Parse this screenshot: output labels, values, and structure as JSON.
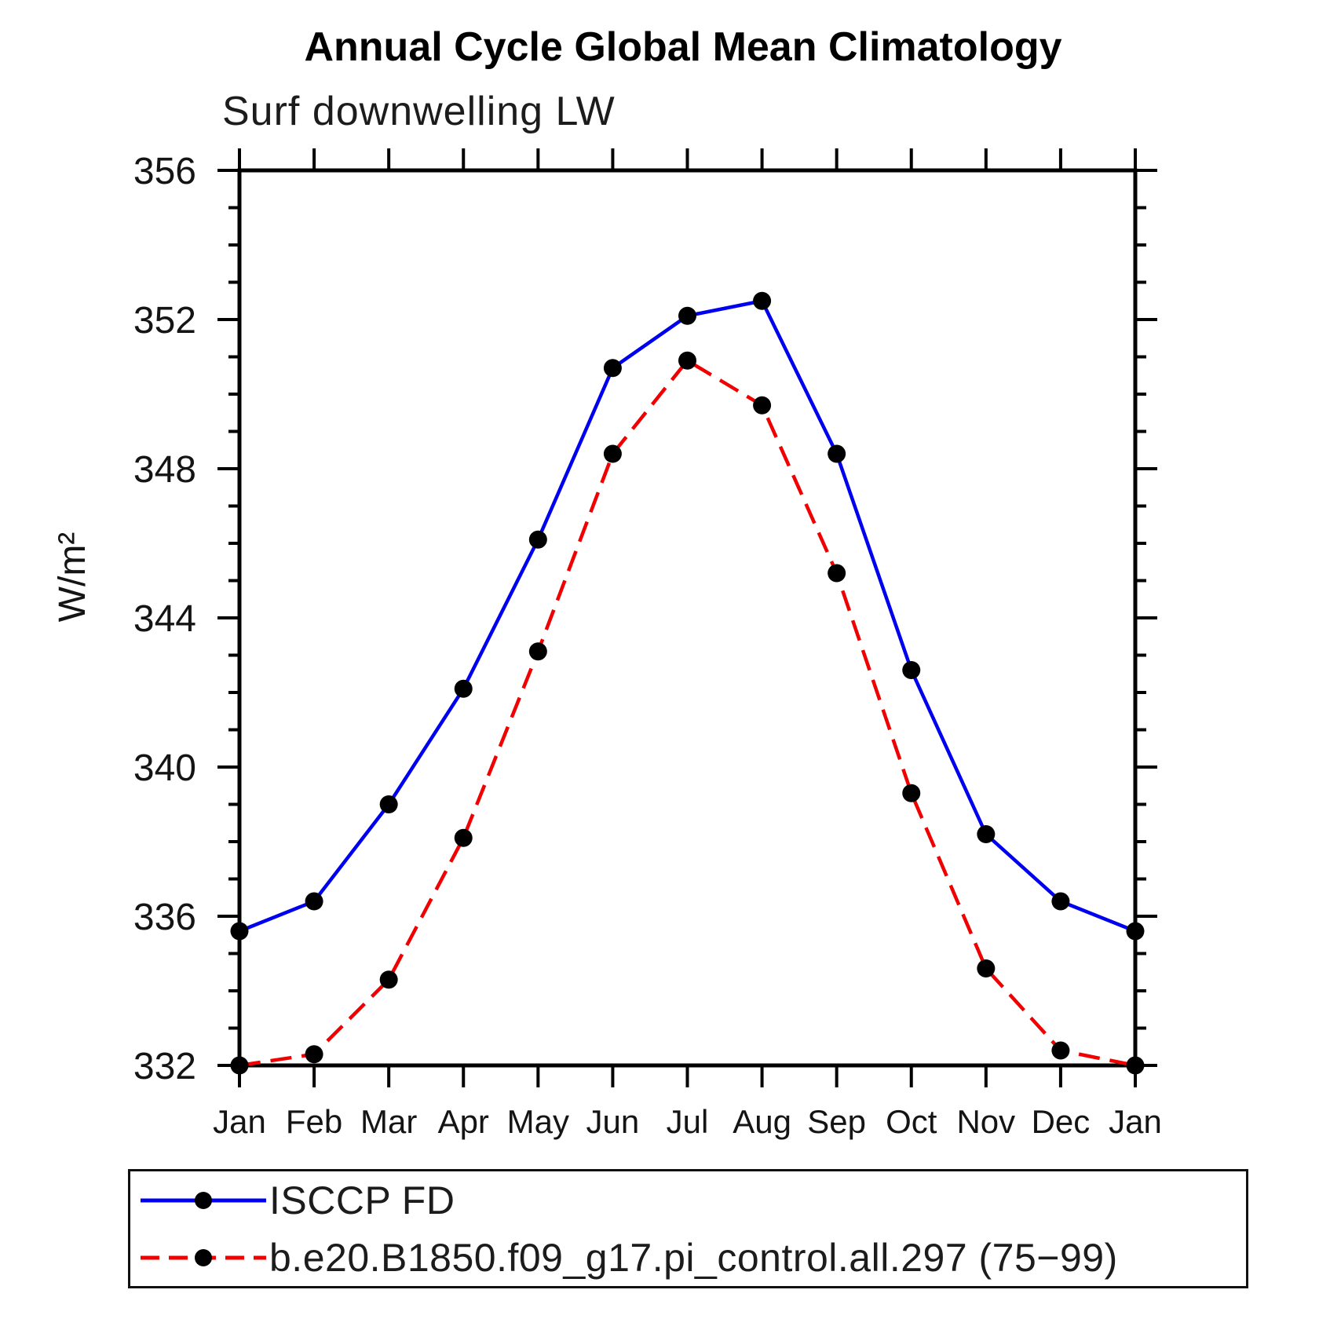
{
  "title": "Annual Cycle Global Mean Climatology",
  "subtitle": "Surf downwelling LW",
  "chart_data": {
    "type": "line",
    "categories": [
      "Jan",
      "Feb",
      "Mar",
      "Apr",
      "May",
      "Jun",
      "Jul",
      "Aug",
      "Sep",
      "Oct",
      "Nov",
      "Dec",
      "Jan"
    ],
    "series": [
      {
        "name": "ISCCP FD",
        "color": "#0000f0",
        "style": "solid",
        "values": [
          335.6,
          336.4,
          339.0,
          342.1,
          346.1,
          350.7,
          352.1,
          352.5,
          348.4,
          342.6,
          338.2,
          336.4,
          335.6
        ]
      },
      {
        "name": "b.e20.B1850.f09_g17.pi_control.all.297 (75−99)",
        "color": "#f00000",
        "style": "dashed",
        "values": [
          332.0,
          332.3,
          334.3,
          338.1,
          343.1,
          348.4,
          350.9,
          349.7,
          345.2,
          339.3,
          334.6,
          332.4,
          332.0
        ]
      }
    ],
    "ylabel": "W/m²",
    "ylim": [
      332,
      356
    ],
    "ytick_major": 4,
    "ytick_minor": 1,
    "grid": "off",
    "marker": "filled-circle",
    "marker_color": "#000000",
    "legend_position": "bottom-left-box"
  }
}
